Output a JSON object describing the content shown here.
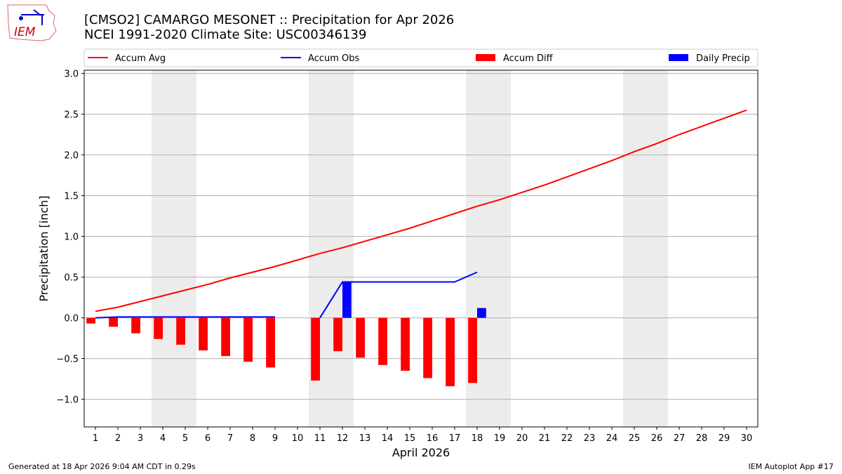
{
  "header": {
    "line1": "[CMSO2] CAMARGO MESONET :: Precipitation for Apr 2026",
    "line2": "NCEI 1991-2020 Climate Site: USC00346139",
    "logo_text": "IEM"
  },
  "footer": {
    "left": "Generated at 18 Apr 2026 9:04 AM CDT in 0.29s",
    "right": "IEM Autoplot App #17"
  },
  "chart_data": {
    "type": "bar+line",
    "xlabel": "April 2026",
    "ylabel": "Precipitation [inch]",
    "xlim": [
      0.5,
      30.5
    ],
    "ylim": [
      -1.34,
      3.04
    ],
    "yticks": [
      -1.0,
      -0.5,
      0.0,
      0.5,
      1.0,
      1.5,
      2.0,
      2.5,
      3.0
    ],
    "ytick_labels": [
      "−1.0",
      "−0.5",
      "0.0",
      "0.5",
      "1.0",
      "1.5",
      "2.0",
      "2.5",
      "3.0"
    ],
    "xticks": [
      1,
      2,
      3,
      4,
      5,
      6,
      7,
      8,
      9,
      10,
      11,
      12,
      13,
      14,
      15,
      16,
      17,
      18,
      19,
      20,
      21,
      22,
      23,
      24,
      25,
      26,
      27,
      28,
      29,
      30
    ],
    "grid": "y",
    "legend_placement": "top",
    "weekend_shading": [
      [
        3.5,
        5.5
      ],
      [
        10.5,
        12.5
      ],
      [
        17.5,
        19.5
      ],
      [
        24.5,
        26.5
      ]
    ],
    "series": [
      {
        "name": "Accum Avg",
        "type": "line",
        "color": "#ff0000",
        "x": [
          1,
          2,
          3,
          4,
          5,
          6,
          7,
          8,
          9,
          10,
          11,
          12,
          13,
          14,
          15,
          16,
          17,
          18,
          19,
          20,
          21,
          22,
          23,
          24,
          25,
          26,
          27,
          28,
          29,
          30
        ],
        "values": [
          0.08,
          0.13,
          0.2,
          0.27,
          0.34,
          0.41,
          0.49,
          0.56,
          0.63,
          0.71,
          0.79,
          0.86,
          0.94,
          1.02,
          1.1,
          1.19,
          1.28,
          1.37,
          1.45,
          1.54,
          1.63,
          1.73,
          1.83,
          1.93,
          2.04,
          2.14,
          2.25,
          2.35,
          2.45,
          2.55
        ]
      },
      {
        "name": "Accum Obs",
        "type": "line",
        "color": "#0000ff",
        "segments": [
          {
            "x": [
              1,
              2,
              3,
              4,
              5,
              6,
              7,
              8,
              9
            ],
            "values": [
              0.0,
              0.01,
              0.01,
              0.01,
              0.01,
              0.01,
              0.01,
              0.01,
              0.01
            ]
          },
          {
            "x": [
              11,
              12,
              13,
              14,
              15,
              16,
              17,
              18
            ],
            "values": [
              0.0,
              0.44,
              0.44,
              0.44,
              0.44,
              0.44,
              0.44,
              0.56
            ]
          }
        ]
      },
      {
        "name": "Accum Diff",
        "type": "bar",
        "color": "#ff0000",
        "x": [
          1,
          2,
          3,
          4,
          5,
          6,
          7,
          8,
          9,
          11,
          12,
          13,
          14,
          15,
          16,
          17,
          18
        ],
        "values": [
          -0.07,
          -0.11,
          -0.19,
          -0.26,
          -0.33,
          -0.4,
          -0.47,
          -0.54,
          -0.61,
          -0.77,
          -0.41,
          -0.49,
          -0.58,
          -0.65,
          -0.74,
          -0.84,
          -0.8
        ]
      },
      {
        "name": "Daily Precip",
        "type": "bar",
        "color": "#0000ff",
        "x": [
          12,
          18
        ],
        "values": [
          0.44,
          0.12
        ]
      }
    ]
  }
}
